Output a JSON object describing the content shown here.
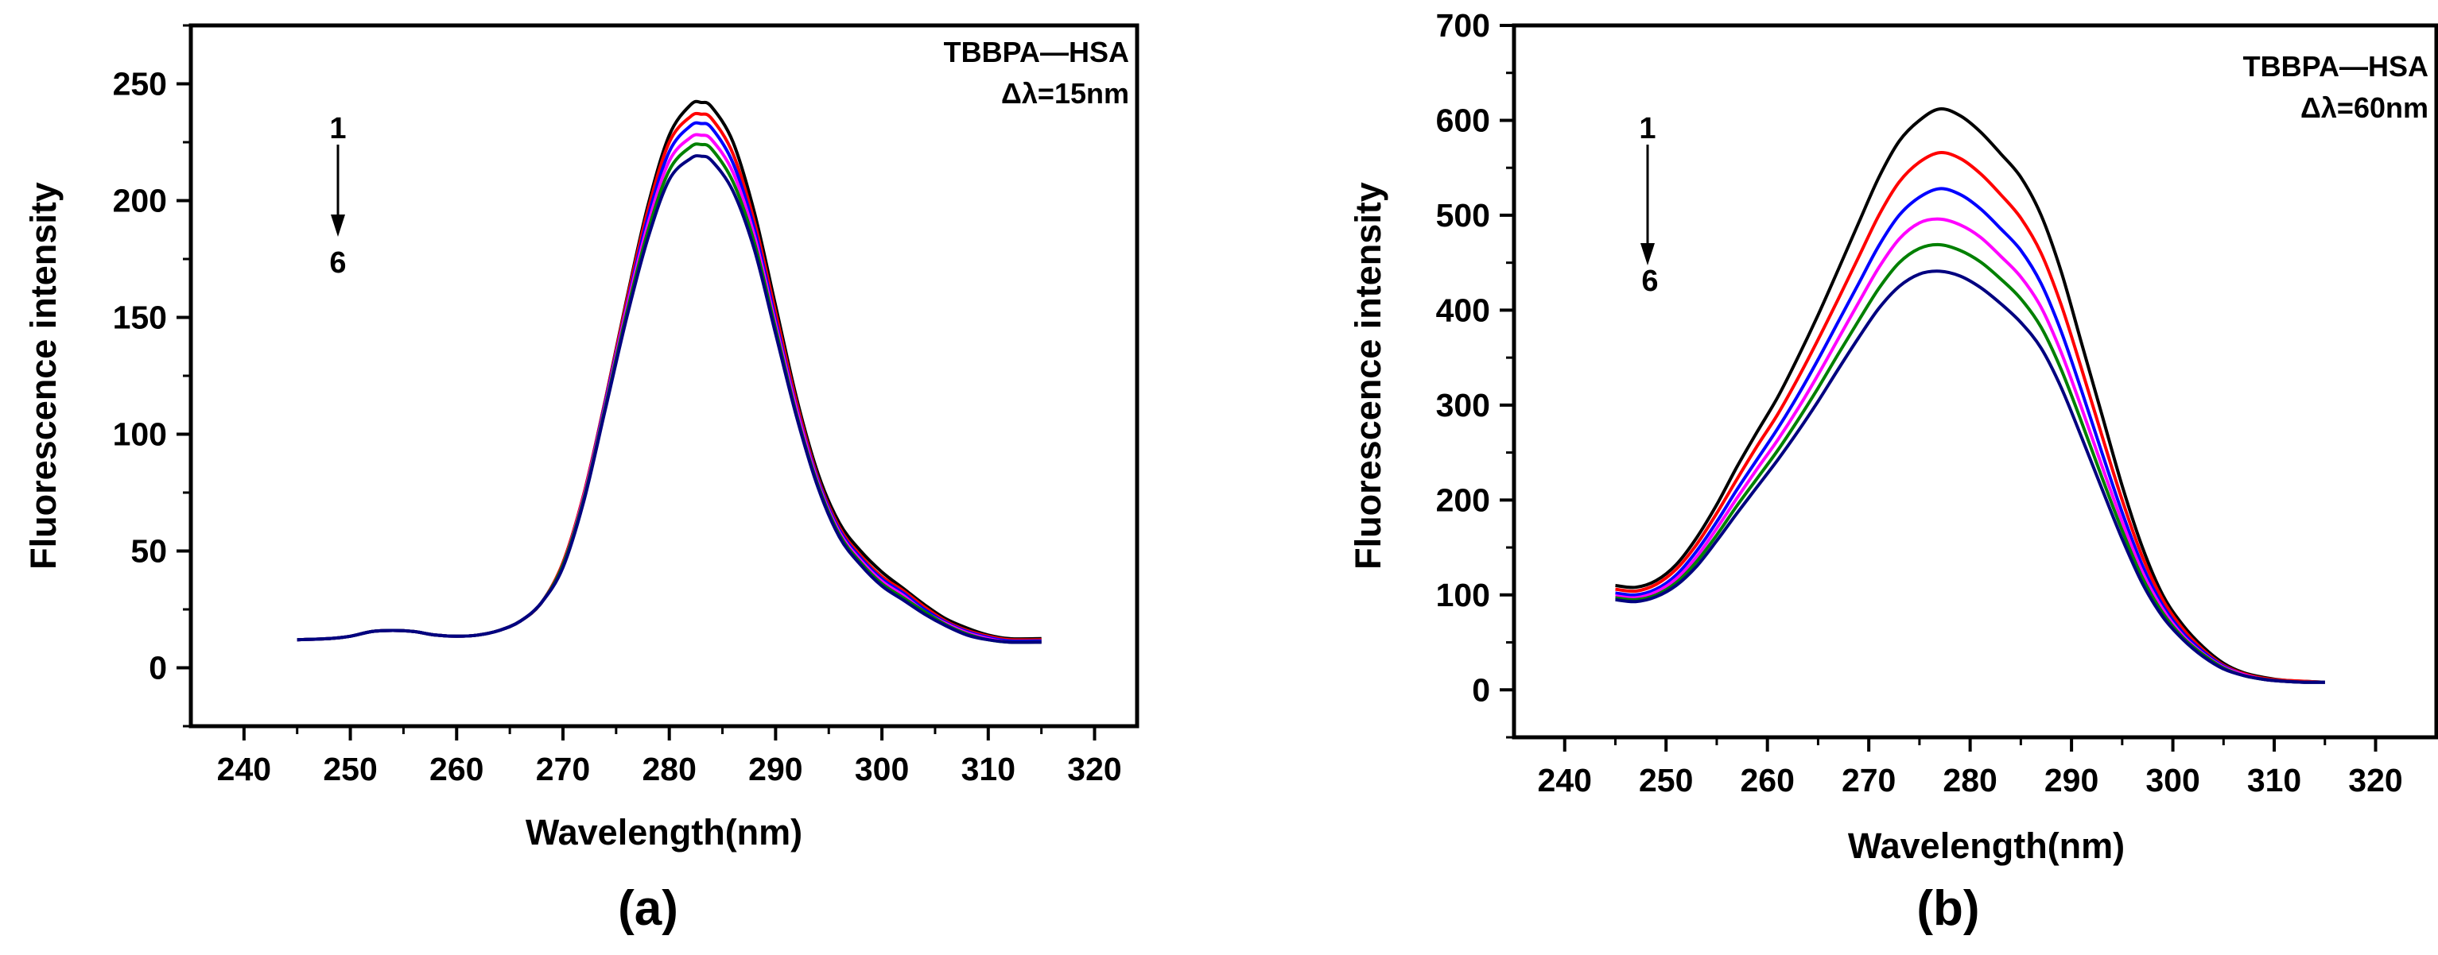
{
  "chart_data": [
    {
      "type": "line",
      "panel_label": "(a)",
      "xlabel": "Wavelength(nm)",
      "ylabel": "Fluorescence intensity",
      "xlim": [
        235,
        324
      ],
      "ylim": [
        -25,
        275
      ],
      "xticks": [
        240,
        250,
        260,
        270,
        280,
        290,
        300,
        310,
        320
      ],
      "yticks": [
        0,
        50,
        100,
        150,
        200,
        250
      ],
      "grid": false,
      "annotation_lines": [
        "TBBPA—HSA",
        "Δλ=15nm"
      ],
      "arrow_from": "1",
      "arrow_to": "6",
      "x": [
        245,
        248,
        250,
        252,
        254,
        256,
        258,
        260,
        262,
        264,
        266,
        268,
        270,
        272,
        274,
        276,
        278,
        280,
        282,
        283,
        284,
        286,
        288,
        290,
        292,
        294,
        296,
        298,
        300,
        302,
        304,
        306,
        308,
        310,
        312,
        315
      ],
      "series": [
        {
          "color": "#000000",
          "values": [
            12,
            12.5,
            13.5,
            15.5,
            16,
            15.5,
            14,
            13.5,
            14,
            16,
            20,
            28,
            45,
            75,
            115,
            158,
            198,
            228,
            241,
            242,
            240,
            225,
            195,
            155,
            115,
            83,
            62,
            50,
            41,
            34,
            27,
            21,
            17,
            14,
            12.5,
            12.5
          ]
        },
        {
          "color": "#ff0000",
          "values": [
            12,
            12.5,
            13.5,
            15.5,
            16,
            15.5,
            14,
            13.5,
            14,
            16,
            20,
            28,
            45,
            75,
            115,
            157,
            196,
            225,
            236,
            237,
            235,
            220,
            191,
            152,
            113,
            81,
            60,
            48,
            39,
            33,
            26,
            20,
            16,
            13.5,
            12,
            12
          ]
        },
        {
          "color": "#0000ff",
          "values": [
            12,
            12.5,
            13.5,
            15.5,
            16,
            15.5,
            14,
            13.5,
            14,
            16,
            20,
            28,
            44,
            74,
            114,
            155,
            193,
            221,
            232,
            233,
            231,
            216,
            188,
            149,
            111,
            80,
            59,
            47,
            38,
            32,
            25,
            19.5,
            15.5,
            13,
            11.5,
            11.5
          ]
        },
        {
          "color": "#ff00ff",
          "values": [
            12,
            12.5,
            13.5,
            15.5,
            16,
            15.5,
            14,
            13.5,
            14,
            16,
            20,
            28,
            44,
            74,
            113,
            154,
            190,
            217,
            227,
            228,
            226,
            212,
            185,
            147,
            110,
            79,
            58,
            46,
            37,
            31,
            24,
            19,
            15,
            12.5,
            11,
            11
          ]
        },
        {
          "color": "#008000",
          "values": [
            12,
            12.5,
            13.5,
            15.5,
            16,
            15.5,
            14,
            13.5,
            14,
            16,
            20,
            28,
            44,
            73,
            112,
            152,
            187,
            213,
            223,
            224,
            222,
            208,
            182,
            145,
            108,
            78,
            57,
            45,
            36,
            30,
            24,
            18.5,
            14.5,
            12,
            11,
            11
          ]
        },
        {
          "color": "#000080",
          "values": [
            12,
            12.5,
            13.5,
            15.5,
            16,
            15.5,
            14,
            13.5,
            14,
            16,
            20,
            28,
            43,
            72,
            111,
            150,
            184,
            209,
            218,
            219,
            217,
            204,
            179,
            143,
            107,
            77,
            56,
            44,
            35,
            29,
            23,
            18,
            14,
            12,
            11,
            11
          ]
        }
      ]
    },
    {
      "type": "line",
      "panel_label": "(b)",
      "xlabel": "Wavelength(nm)",
      "ylabel": "Fluorescence intensity",
      "xlim": [
        235,
        326
      ],
      "ylim": [
        -50,
        700
      ],
      "xticks": [
        240,
        250,
        260,
        270,
        280,
        290,
        300,
        310,
        320
      ],
      "yticks": [
        0,
        100,
        200,
        300,
        400,
        500,
        600,
        700
      ],
      "grid": false,
      "annotation_lines": [
        "TBBPA—HSA",
        "Δλ=60nm"
      ],
      "arrow_from": "1",
      "arrow_to": "6",
      "x": [
        245,
        247,
        249,
        251,
        253,
        255,
        257,
        259,
        261,
        263,
        265,
        267,
        269,
        271,
        273,
        275,
        277,
        279,
        281,
        283,
        285,
        287,
        289,
        291,
        293,
        295,
        297,
        299,
        301,
        303,
        305,
        307,
        309,
        311,
        313,
        315
      ],
      "series": [
        {
          "color": "#000000",
          "values": [
            110,
            108,
            115,
            132,
            160,
            195,
            235,
            272,
            308,
            350,
            395,
            443,
            492,
            540,
            578,
            600,
            612,
            605,
            588,
            565,
            540,
            500,
            440,
            365,
            290,
            215,
            150,
            100,
            68,
            45,
            28,
            18,
            13,
            10,
            9,
            8
          ]
        },
        {
          "color": "#ff0000",
          "values": [
            106,
            104,
            111,
            127,
            153,
            186,
            222,
            257,
            290,
            328,
            369,
            412,
            456,
            500,
            535,
            556,
            566,
            560,
            544,
            522,
            497,
            460,
            405,
            338,
            268,
            200,
            140,
            95,
            64,
            42,
            26,
            17,
            12,
            10,
            9,
            8
          ]
        },
        {
          "color": "#0000ff",
          "values": [
            102,
            100,
            106,
            121,
            146,
            177,
            211,
            243,
            275,
            310,
            348,
            388,
            428,
            468,
            500,
            519,
            528,
            522,
            507,
            486,
            463,
            428,
            377,
            315,
            250,
            187,
            131,
            89,
            60,
            40,
            25,
            16,
            11,
            9,
            8,
            8
          ]
        },
        {
          "color": "#ff00ff",
          "values": [
            99,
            97,
            103,
            117,
            140,
            170,
            202,
            233,
            263,
            296,
            332,
            370,
            408,
            445,
            475,
            492,
            496,
            490,
            477,
            457,
            435,
            403,
            355,
            297,
            236,
            177,
            124,
            85,
            57,
            38,
            24,
            16,
            11,
            9,
            8,
            8
          ]
        },
        {
          "color": "#008000",
          "values": [
            97,
            95,
            100,
            113,
            135,
            163,
            194,
            223,
            252,
            284,
            318,
            354,
            389,
            423,
            450,
            465,
            469,
            463,
            451,
            433,
            412,
            382,
            337,
            282,
            224,
            168,
            118,
            81,
            55,
            37,
            23,
            15,
            11,
            9,
            8,
            8
          ]
        },
        {
          "color": "#000080",
          "values": [
            95,
            93,
            98,
            110,
            130,
            157,
            186,
            214,
            242,
            272,
            304,
            338,
            371,
            402,
            425,
            438,
            441,
            436,
            424,
            407,
            387,
            360,
            318,
            266,
            212,
            159,
            112,
            77,
            53,
            35,
            22,
            15,
            11,
            9,
            8,
            8
          ]
        }
      ]
    }
  ]
}
